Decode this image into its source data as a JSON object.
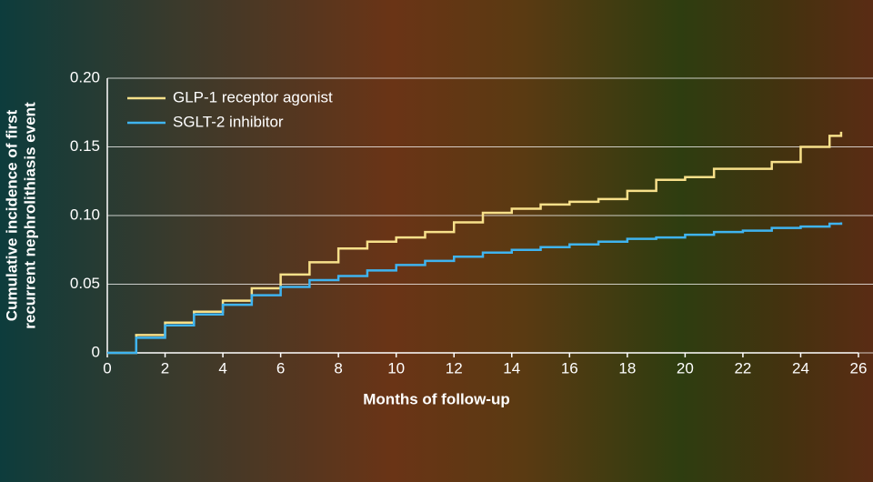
{
  "chart_data": {
    "type": "line",
    "step": "post",
    "ylabel": [
      "Cumulative incidence of first",
      "recurrent nephrolithiasis event"
    ],
    "xlabel": "Months of follow-up",
    "x": [
      0,
      1,
      2,
      3,
      4,
      5,
      6,
      7,
      8,
      9,
      10,
      11,
      12,
      13,
      14,
      15,
      16,
      17,
      18,
      19,
      20,
      21,
      22,
      23,
      24,
      25,
      25.4
    ],
    "series": [
      {
        "name": "GLP-1 receptor agonist",
        "color": "#f7e08a",
        "values": [
          0,
          0.013,
          0.022,
          0.03,
          0.038,
          0.047,
          0.057,
          0.066,
          0.076,
          0.081,
          0.084,
          0.088,
          0.095,
          0.102,
          0.105,
          0.108,
          0.11,
          0.112,
          0.118,
          0.126,
          0.128,
          0.134,
          0.134,
          0.139,
          0.15,
          0.158,
          0.161
        ]
      },
      {
        "name": "SGLT-2 inhibitor",
        "color": "#3fb4f0",
        "values": [
          0,
          0.011,
          0.02,
          0.028,
          0.035,
          0.042,
          0.048,
          0.053,
          0.056,
          0.06,
          0.064,
          0.067,
          0.07,
          0.073,
          0.075,
          0.077,
          0.079,
          0.081,
          0.083,
          0.084,
          0.086,
          0.088,
          0.089,
          0.091,
          0.092,
          0.094,
          0.095
        ]
      }
    ],
    "xlim": [
      0,
      26
    ],
    "xticks": [
      0,
      2,
      4,
      6,
      8,
      10,
      12,
      14,
      16,
      18,
      20,
      22,
      24,
      26
    ],
    "ylim": [
      0,
      0.2
    ],
    "yticks": [
      0,
      0.05,
      {
        "value": 0.1,
        "label": "0.10"
      },
      0.15,
      {
        "value": 0.2,
        "label": "0.20"
      }
    ],
    "grid": true,
    "legend": "top-left"
  }
}
